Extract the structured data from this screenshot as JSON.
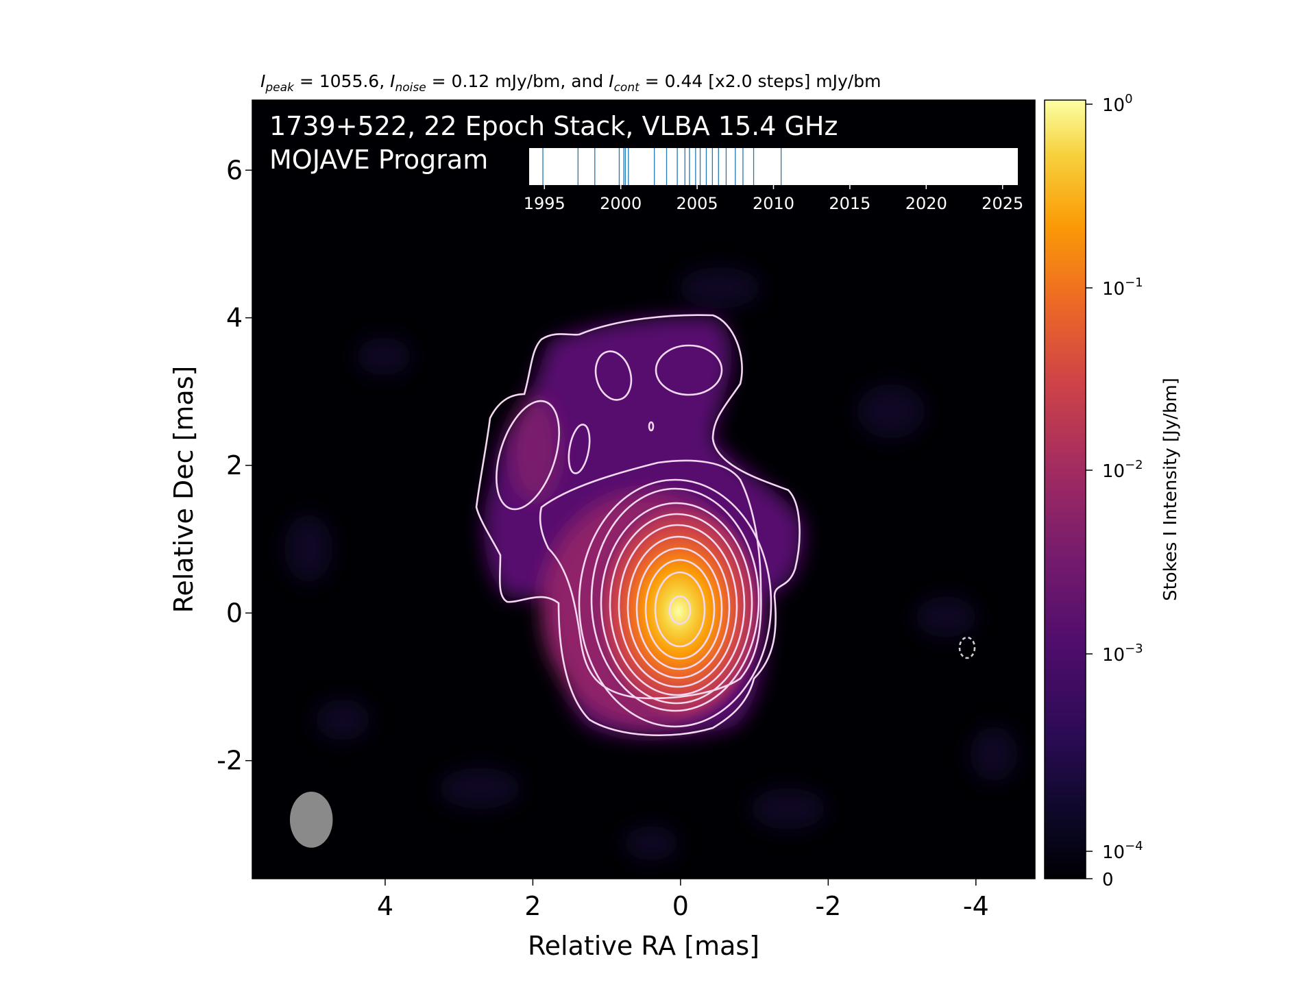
{
  "header": {
    "peak_sym": "I",
    "peak_sub": "peak",
    "peak_val": " = 1055.6, ",
    "noise_sym": "I",
    "noise_sub": "noise",
    "noise_val": " = 0.12 mJy/bm, and ",
    "cont_sym": "I",
    "cont_sub": "cont",
    "cont_val": " = 0.44 [x2.0 steps] mJy/bm"
  },
  "overlay": {
    "line1": "1739+522, 22 Epoch Stack, VLBA 15.4 GHz",
    "line2": "MOJAVE Program"
  },
  "colors": {
    "contour": "#f2d9f0",
    "beam": "#8a8a8a",
    "background": "#000004",
    "timeline_mark": "#1f77b4"
  },
  "chart_data": {
    "type": "heatmap",
    "colormap": "inferno",
    "xlabel": "Relative RA [mas]",
    "ylabel": "Relative Dec [mas]",
    "xlim": [
      5.8,
      -4.8
    ],
    "ylim": [
      -3.6,
      6.95
    ],
    "x_ticks": [
      4,
      2,
      0,
      -2,
      -4
    ],
    "x_tick_labels": [
      "4",
      "2",
      "0",
      "-2",
      "-4"
    ],
    "y_ticks": [
      -2,
      0,
      2,
      4,
      6
    ],
    "y_tick_labels": [
      "-2",
      "0",
      "2",
      "4",
      "6"
    ],
    "contour_levels_mJy": [
      0.44,
      0.88,
      1.76,
      3.52,
      7.04,
      14.08,
      28.16,
      56.32,
      112.64,
      225.28,
      450.56,
      901.12
    ],
    "peak_mJy": 1055.6,
    "noise_mJy": 0.12,
    "colorbar": {
      "label": "Stokes I Intensity [Jy/bm]",
      "scale": "log",
      "ticks": [
        {
          "value": 1,
          "base": "10",
          "exp": "0"
        },
        {
          "value": 0.1,
          "base": "10",
          "exp": "−1"
        },
        {
          "value": 0.01,
          "base": "10",
          "exp": "−2"
        },
        {
          "value": 0.001,
          "base": "10",
          "exp": "−3"
        },
        {
          "value": 0.0001,
          "base": "10",
          "exp": "−4"
        },
        {
          "value": 0,
          "base": "0",
          "exp": ""
        }
      ]
    },
    "beam": {
      "ra_center": 5.0,
      "dec_center": -2.8,
      "major_mas": 0.76,
      "minor_mas": 0.58,
      "pa_deg": 0
    },
    "timeline": {
      "xlim": [
        1994,
        2026
      ],
      "tick_years": [
        1995,
        2000,
        2005,
        2010,
        2015,
        2020,
        2025
      ],
      "epochs": [
        1994.9,
        1997.2,
        1998.3,
        1999.9,
        2000.2,
        2000.3,
        2000.5,
        2002.2,
        2003.0,
        2003.7,
        2004.2,
        2004.5,
        2004.9,
        2005.2,
        2005.6,
        2006.0,
        2006.4,
        2006.9,
        2007.5,
        2008.0,
        2008.7,
        2010.5
      ]
    }
  }
}
